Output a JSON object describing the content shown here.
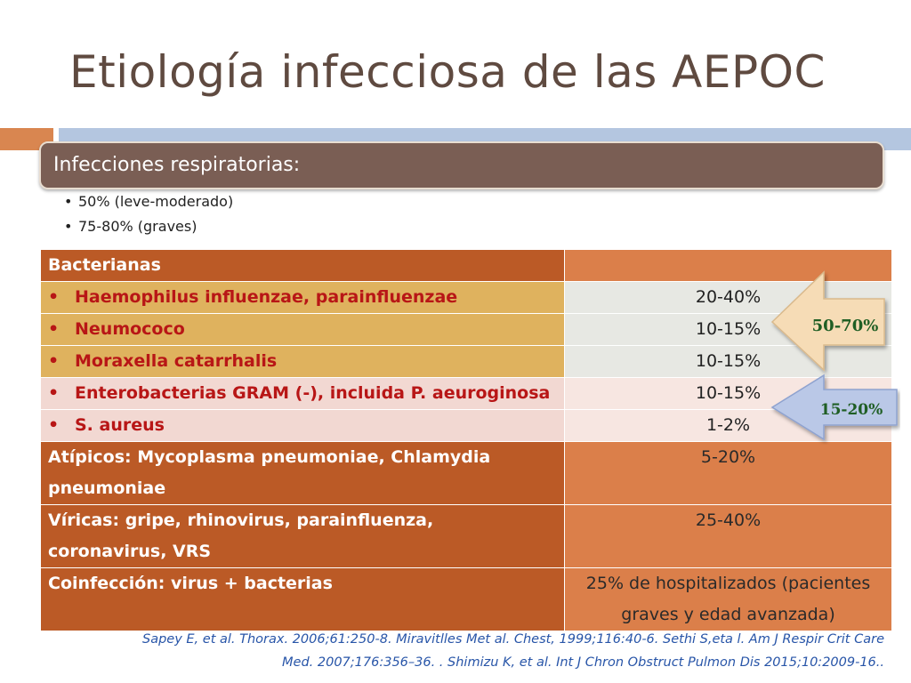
{
  "title": "Etiología infecciosa de las AEPOC",
  "header": "Infecciones respiratorias:",
  "bullets": [
    "50% (leve-moderado)",
    "75-80% (graves)"
  ],
  "table": {
    "bacterianas_label": "Bacterianas",
    "rows": [
      {
        "name": "Haemophilus influenzae, parainfluenzae",
        "value": "20-40%"
      },
      {
        "name": "Neumococo",
        "value": "10-15%"
      },
      {
        "name": "Moraxella catarrhalis",
        "value": "10-15%"
      },
      {
        "name": "Enterobacterias GRAM (-), incluida P. aeuroginosa",
        "value": "10-15%"
      },
      {
        "name": "S. aureus",
        "value": "1-2%"
      }
    ],
    "atipicos": {
      "name": "Atípicos: Mycoplasma pneumoniae, Chlamydia pneumoniae",
      "value": "5-20%"
    },
    "viricas": {
      "name": "Víricas: gripe, rhinovirus, parainfluenza, coronavirus, VRS",
      "value": "25-40%"
    },
    "coinfeccion": {
      "name": "Coinfección: virus +  bacterias",
      "value": "25% de hospitalizados (pacientes graves y edad avanzada)"
    }
  },
  "arrows": [
    {
      "label": "50-70%",
      "color": "#f5d9b2"
    },
    {
      "label": "15-20%",
      "color": "#b8c7e6"
    }
  ],
  "reference": {
    "line1": "Sapey E, et al. Thorax. 2006;61:250-8. Miravitlles Met al. Chest, 1999;116:40-6. Sethi S,eta l. Am J Respir Crit Care",
    "line2": "Med. 2007;176:356–36. . Shimizu K, et al. Int J Chron Obstruct Pulmon Dis 2015;10:2009-16.."
  }
}
